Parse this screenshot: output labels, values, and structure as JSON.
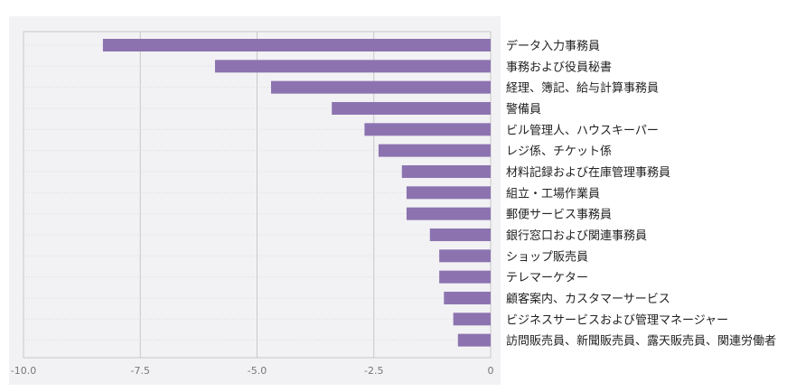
{
  "chart_data": {
    "type": "bar",
    "orientation": "horizontal",
    "categories": [
      "データ入力事務員",
      "事務および役員秘書",
      "経理、簿記、給与計算事務員",
      "警備員",
      "ビル管理人、ハウスキーパー",
      "レジ係、チケット係",
      "材料記録および在庫管理事務員",
      "組立・工場作業員",
      "郵便サービス事務員",
      "銀行窓口および関連事務員",
      "ショップ販売員",
      "テレマーケター",
      "顧客案内、カスタマーサービス",
      "ビジネスサービスおよび管理マネージャー",
      "訪問販売員、新聞販売員、露天販売員、関連労働者"
    ],
    "values": [
      -8.3,
      -5.9,
      -4.7,
      -3.4,
      -2.7,
      -2.4,
      -1.9,
      -1.8,
      -1.8,
      -1.3,
      -1.1,
      -1.1,
      -1.0,
      -0.8,
      -0.7
    ],
    "xlim": [
      -10,
      0
    ],
    "xticks": [
      -10,
      -7.5,
      -5,
      -2.5,
      0
    ],
    "xtick_labels": [
      "-10.0",
      "-7.5",
      "-5.0",
      "-2.5",
      "0"
    ],
    "title": "",
    "xlabel": "",
    "ylabel": "",
    "grid": "vertical",
    "category_labels_side": "right",
    "bar_color": "#8c73b0",
    "plot_background": "#f2f2f4",
    "grid_color": "#c8c8c8",
    "tick_color": "#777777",
    "label_color": "#222222"
  }
}
